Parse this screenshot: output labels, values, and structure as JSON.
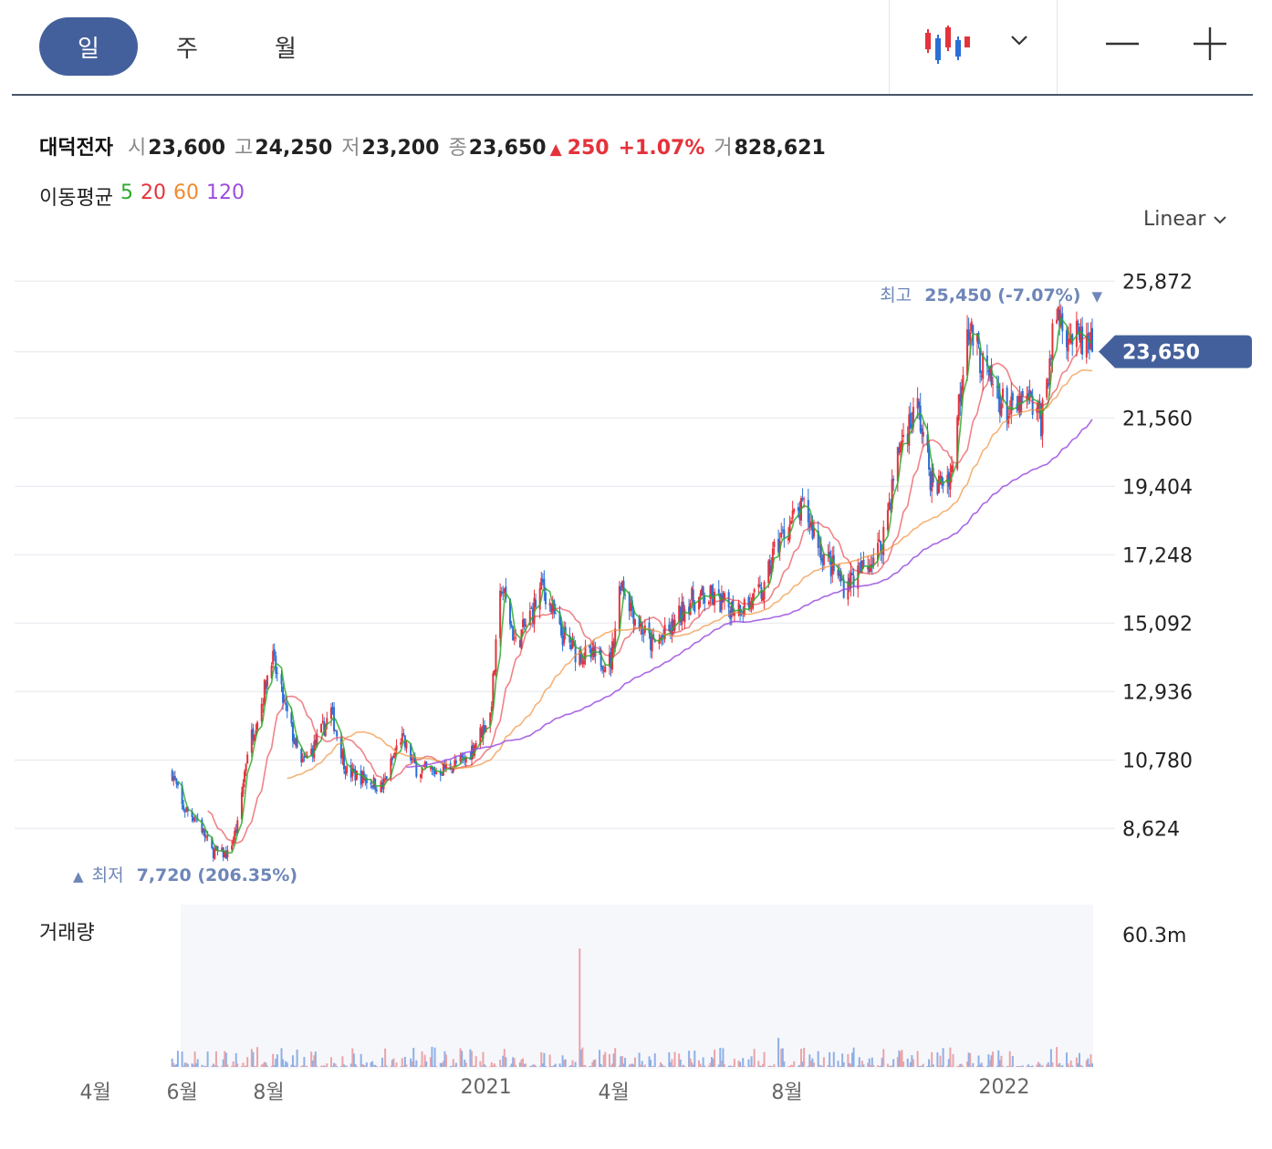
{
  "toolbar": {
    "tabs": [
      {
        "label": "일",
        "active": true
      },
      {
        "label": "주",
        "active": false
      },
      {
        "label": "월",
        "active": false
      }
    ],
    "chart_type_icon": "candlestick-icon",
    "dropdown_icon": "chevron-down-icon",
    "zoom_out_icon": "minus-icon",
    "zoom_in_icon": "plus-icon"
  },
  "quote": {
    "name": "대덕전자",
    "open_label": "시",
    "open": "23,600",
    "high_label": "고",
    "high": "24,250",
    "low_label": "저",
    "low": "23,200",
    "close_label": "종",
    "close": "23,650",
    "change_arrow": "▲",
    "change": "250",
    "change_pct": "+1.07%",
    "volume_label": "거",
    "volume": "828,621"
  },
  "moving_average": {
    "label": "이동평균",
    "periods": [
      {
        "label": "5",
        "color": "#2eaa2e"
      },
      {
        "label": "20",
        "color": "#e5323b"
      },
      {
        "label": "60",
        "color": "#f08a30"
      },
      {
        "label": "120",
        "color": "#9b4de0"
      }
    ]
  },
  "scale_selector": {
    "label": "Linear",
    "icon": "chevron-down-icon"
  },
  "colors": {
    "up": "#e5323b",
    "down": "#2a6fd6",
    "accent": "#44609c",
    "grid": "#eceef2"
  },
  "chart_data": {
    "type": "candlestick",
    "y_axis_ticks": [
      "25,872",
      "23,650",
      "21,560",
      "19,404",
      "17,248",
      "15,092",
      "12,936",
      "10,780",
      "8,624"
    ],
    "y_ticks_values": [
      25872,
      21560,
      19404,
      17248,
      15092,
      12936,
      10780,
      8624
    ],
    "ylim": [
      7430,
      26400
    ],
    "current_price": {
      "label": "23,650",
      "value": 23650
    },
    "max_marker": {
      "label": "최고",
      "value_text": "25,450 (-7.07%)",
      "arrow": "▼",
      "value": 25450
    },
    "min_marker": {
      "label": "최저",
      "value_text": "7,720 (206.35%)",
      "arrow": "▲",
      "value": 7720
    },
    "x_axis_labels": [
      "4월",
      "6월",
      "8월",
      "2021",
      "4월",
      "8월",
      "2022"
    ],
    "x_axis_label_dates": [
      "2020-04-01",
      "2020-06-01",
      "2020-08-01",
      "2021-01-01",
      "2021-04-01",
      "2021-08-01",
      "2022-01-01"
    ],
    "date_range": [
      "2020-03-20",
      "2022-03-04"
    ],
    "first_candle_date": "2020-05-25",
    "last_candle_date": "2022-03-04",
    "close_anchors": [
      [
        "2020-05-25",
        10400
      ],
      [
        "2020-06-01",
        9300
      ],
      [
        "2020-06-12",
        8900
      ],
      [
        "2020-06-22",
        7900
      ],
      [
        "2020-07-03",
        7800
      ],
      [
        "2020-07-10",
        8700
      ],
      [
        "2020-07-17",
        11100
      ],
      [
        "2020-07-27",
        12600
      ],
      [
        "2020-08-03",
        14100
      ],
      [
        "2020-08-12",
        12500
      ],
      [
        "2020-08-24",
        10600
      ],
      [
        "2020-09-02",
        11200
      ],
      [
        "2020-09-14",
        12300
      ],
      [
        "2020-09-25",
        10400
      ],
      [
        "2020-10-08",
        10200
      ],
      [
        "2020-10-20",
        9900
      ],
      [
        "2020-11-02",
        11500
      ],
      [
        "2020-11-13",
        10500
      ],
      [
        "2020-11-25",
        10400
      ],
      [
        "2020-12-08",
        10600
      ],
      [
        "2020-12-18",
        10800
      ],
      [
        "2021-01-04",
        12200
      ],
      [
        "2021-01-12",
        16300
      ],
      [
        "2021-01-22",
        14400
      ],
      [
        "2021-02-03",
        15500
      ],
      [
        "2021-02-10",
        16300
      ],
      [
        "2021-02-22",
        14800
      ],
      [
        "2021-03-05",
        14200
      ],
      [
        "2021-03-17",
        14000
      ],
      [
        "2021-03-30",
        13900
      ],
      [
        "2021-04-06",
        16500
      ],
      [
        "2021-04-16",
        15300
      ],
      [
        "2021-04-28",
        14400
      ],
      [
        "2021-05-10",
        14800
      ],
      [
        "2021-05-24",
        15800
      ],
      [
        "2021-06-08",
        15900
      ],
      [
        "2021-06-21",
        15600
      ],
      [
        "2021-07-05",
        15700
      ],
      [
        "2021-07-16",
        16100
      ],
      [
        "2021-07-23",
        17400
      ],
      [
        "2021-08-04",
        18300
      ],
      [
        "2021-08-13",
        18700
      ],
      [
        "2021-08-27",
        17200
      ],
      [
        "2021-09-10",
        16300
      ],
      [
        "2021-09-24",
        16800
      ],
      [
        "2021-10-06",
        17500
      ],
      [
        "2021-10-20",
        20800
      ],
      [
        "2021-11-01",
        21900
      ],
      [
        "2021-11-12",
        19300
      ],
      [
        "2021-11-25",
        19900
      ],
      [
        "2021-12-06",
        24600
      ],
      [
        "2021-12-20",
        22800
      ],
      [
        "2022-01-05",
        21700
      ],
      [
        "2022-01-18",
        22100
      ],
      [
        "2022-01-27",
        21500
      ],
      [
        "2022-02-07",
        24900
      ],
      [
        "2022-02-16",
        24200
      ],
      [
        "2022-03-04",
        23650
      ]
    ],
    "volume": {
      "title": "거래량",
      "tick_label": "60.3m",
      "tick_value": 60300000,
      "ylim": [
        0,
        72000000
      ]
    }
  }
}
